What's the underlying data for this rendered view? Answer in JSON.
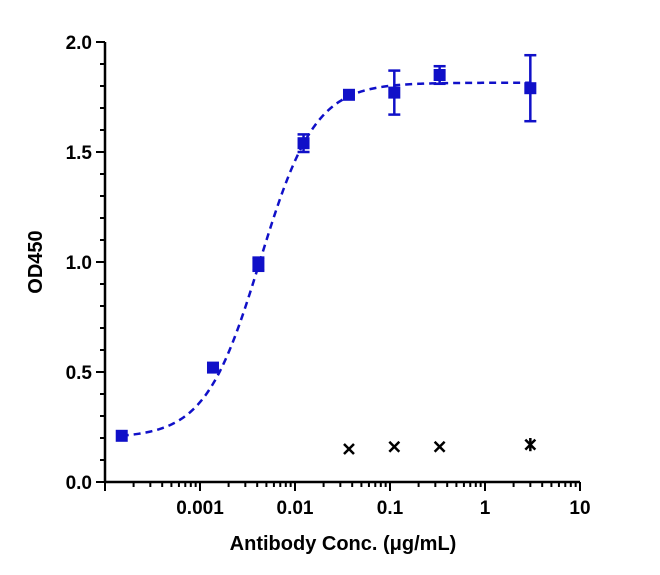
{
  "chart_data": {
    "type": "scatter",
    "xlabel": "Antibody Conc. (μg/mL)",
    "ylabel": "OD450",
    "x_scale": "log",
    "xlim": [
      0.0001,
      10
    ],
    "ylim": [
      0,
      2.0
    ],
    "x_ticks": [
      {
        "value": 0.001,
        "label": "0.001"
      },
      {
        "value": 0.01,
        "label": "0.01"
      },
      {
        "value": 0.1,
        "label": "0.1"
      },
      {
        "value": 1,
        "label": "1"
      },
      {
        "value": 10,
        "label": "10"
      }
    ],
    "y_ticks": [
      {
        "value": 0.0,
        "label": "0.0"
      },
      {
        "value": 0.5,
        "label": "0.5"
      },
      {
        "value": 1.0,
        "label": "1.0"
      },
      {
        "value": 1.5,
        "label": "1.5"
      },
      {
        "value": 2.0,
        "label": "2.0"
      }
    ],
    "grid": false,
    "series": [
      {
        "marker": "square",
        "color": "#1010c8",
        "fit_curve": "dashed sigmoidal 4PL",
        "points": [
          {
            "x": 0.00015,
            "y": 0.21,
            "err": 0.0
          },
          {
            "x": 0.00137,
            "y": 0.52,
            "err": 0.0
          },
          {
            "x": 0.00412,
            "y": 0.99,
            "err": 0.03
          },
          {
            "x": 0.0123,
            "y": 1.54,
            "err": 0.04
          },
          {
            "x": 0.037,
            "y": 1.76,
            "err": 0.0
          },
          {
            "x": 0.111,
            "y": 1.77,
            "err": 0.1
          },
          {
            "x": 0.333,
            "y": 1.85,
            "err": 0.04
          },
          {
            "x": 3.0,
            "y": 1.79,
            "err": 0.15
          }
        ]
      },
      {
        "marker": "x",
        "color": "#000000",
        "points": [
          {
            "x": 0.037,
            "y": 0.15,
            "err": 0.0
          },
          {
            "x": 0.111,
            "y": 0.16,
            "err": 0.0
          },
          {
            "x": 0.333,
            "y": 0.16,
            "err": 0.0
          },
          {
            "x": 3.0,
            "y": 0.17,
            "err": 0.03
          }
        ]
      }
    ],
    "fit": {
      "bottom": 0.2,
      "top": 1.815,
      "ec50": 0.0043,
      "hill": 1.5
    }
  }
}
